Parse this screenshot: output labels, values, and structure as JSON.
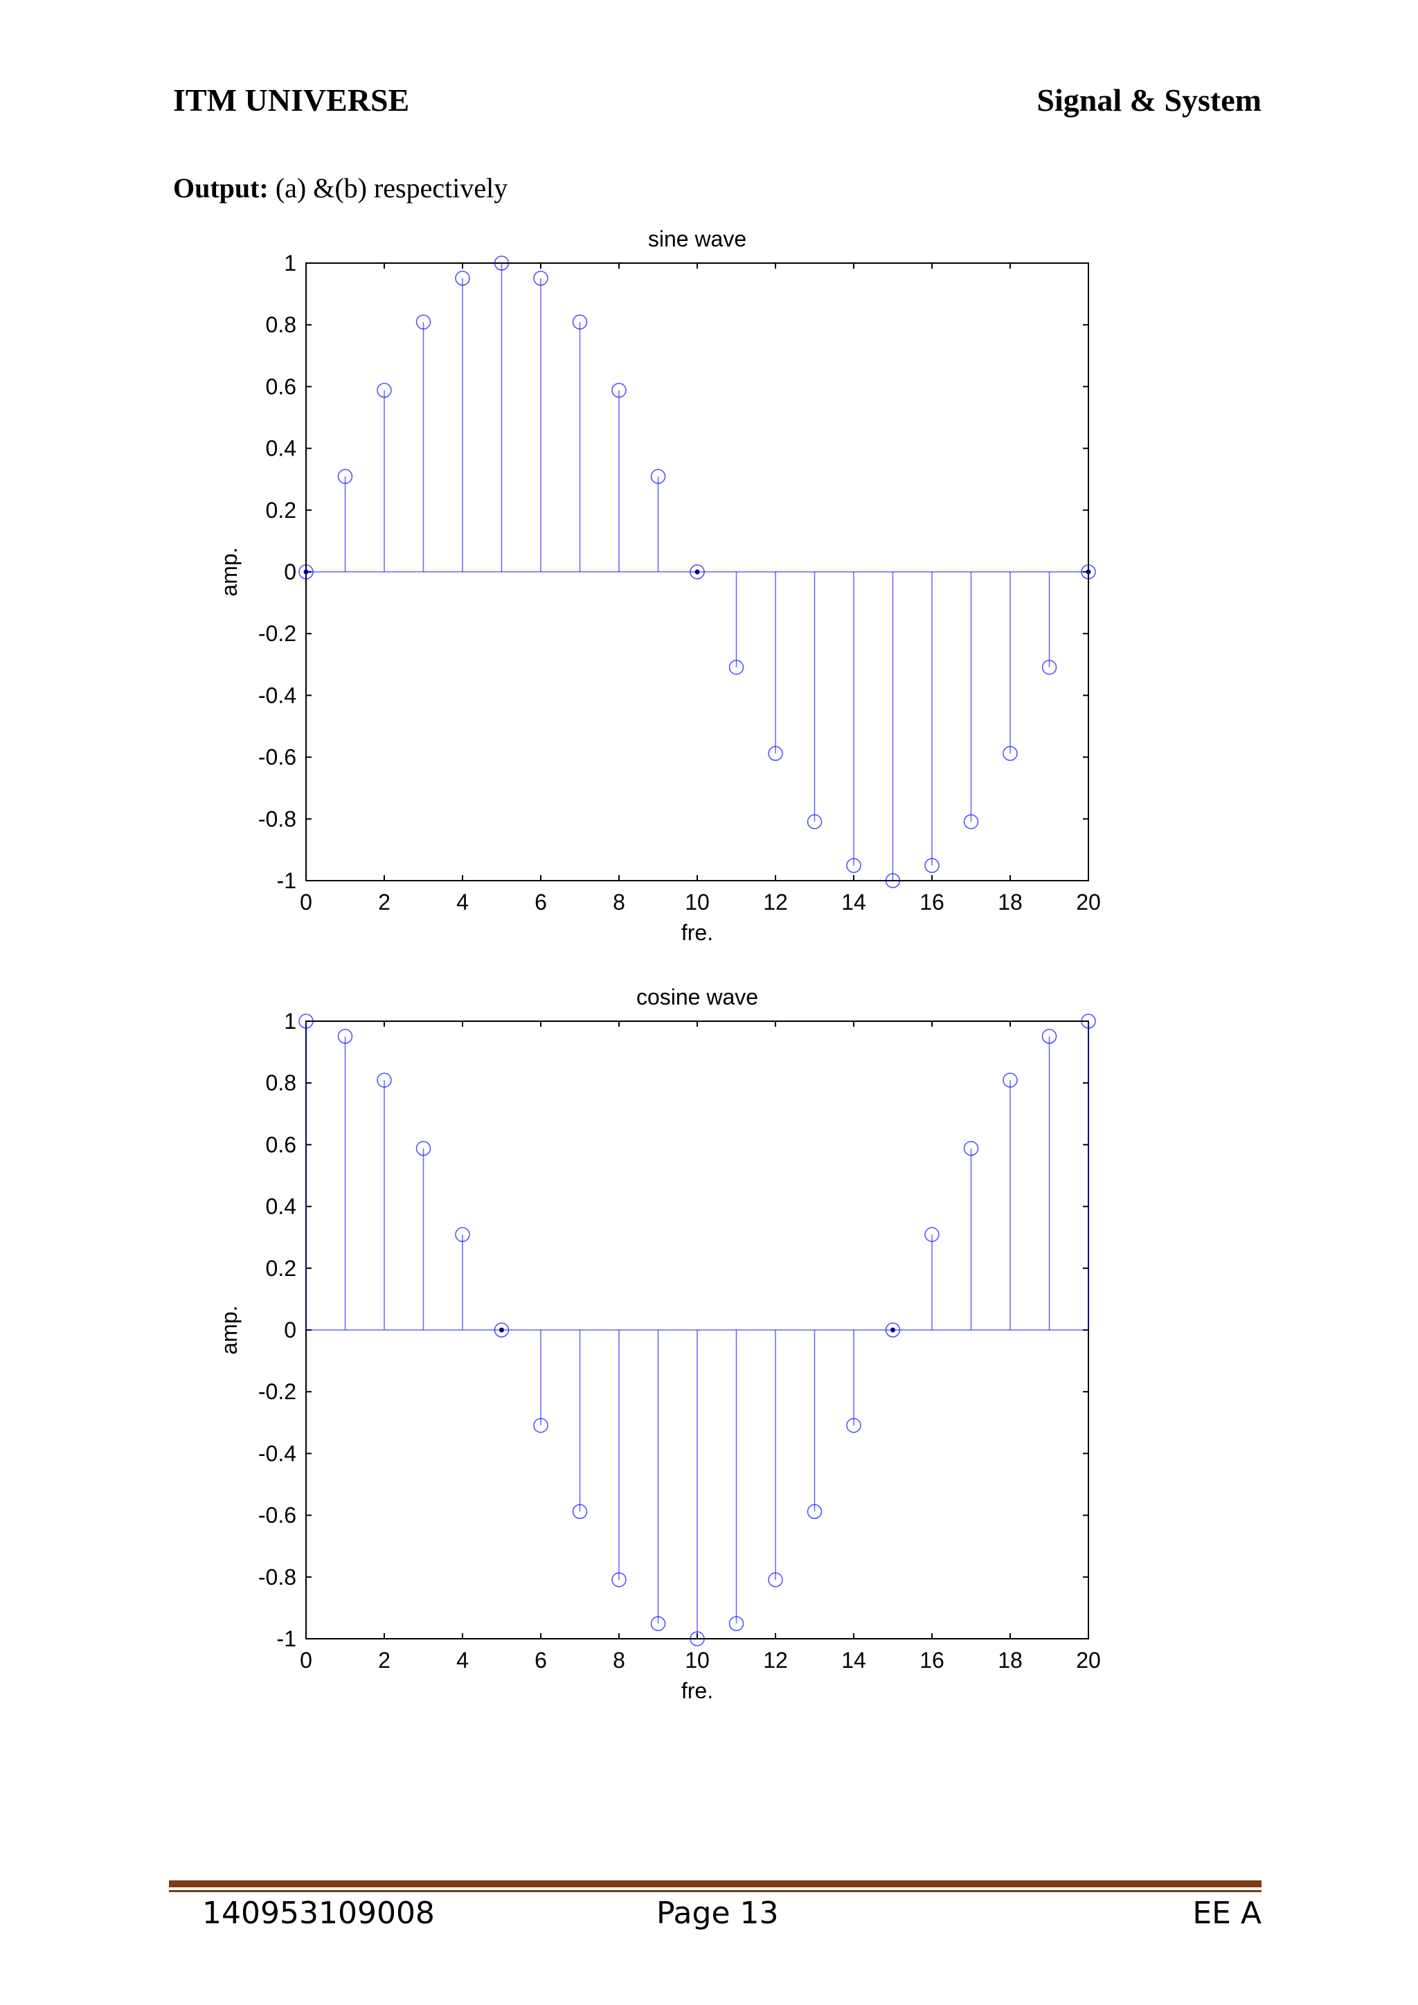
{
  "header": {
    "left": "ITM UNIVERSE",
    "right": "Signal & System"
  },
  "output": {
    "label": "Output:",
    "text": "(a) &(b) respectively"
  },
  "chart_data": [
    {
      "type": "stem",
      "title": "sine wave",
      "xlabel": "fre.",
      "ylabel": "amp.",
      "xlim": [
        0,
        20
      ],
      "ylim": [
        -1,
        1
      ],
      "xticks": [
        "0",
        "2",
        "4",
        "6",
        "8",
        "10",
        "12",
        "14",
        "16",
        "18",
        "20"
      ],
      "yticks": [
        "1",
        "0.8",
        "0.6",
        "0.4",
        "0.2",
        "0",
        "-0.2",
        "-0.4",
        "-0.6",
        "-0.8",
        "-1"
      ],
      "x": [
        0,
        1,
        2,
        3,
        4,
        5,
        6,
        7,
        8,
        9,
        10,
        11,
        12,
        13,
        14,
        15,
        16,
        17,
        18,
        19,
        20
      ],
      "y": [
        0,
        0.309,
        0.588,
        0.809,
        0.951,
        1,
        0.951,
        0.809,
        0.588,
        0.309,
        0,
        -0.309,
        -0.588,
        -0.809,
        -0.951,
        -1,
        -0.951,
        -0.809,
        -0.588,
        -0.309,
        0
      ],
      "color": "#0000ff"
    },
    {
      "type": "stem",
      "title": "cosine wave",
      "xlabel": "fre.",
      "ylabel": "amp.",
      "xlim": [
        0,
        20
      ],
      "ylim": [
        -1,
        1
      ],
      "xticks": [
        "0",
        "2",
        "4",
        "6",
        "8",
        "10",
        "12",
        "14",
        "16",
        "18",
        "20"
      ],
      "yticks": [
        "1",
        "0.8",
        "0.6",
        "0.4",
        "0.2",
        "0",
        "-0.2",
        "-0.4",
        "-0.6",
        "-0.8",
        "-1"
      ],
      "x": [
        0,
        1,
        2,
        3,
        4,
        5,
        6,
        7,
        8,
        9,
        10,
        11,
        12,
        13,
        14,
        15,
        16,
        17,
        18,
        19,
        20
      ],
      "y": [
        1,
        0.951,
        0.809,
        0.588,
        0.309,
        0,
        -0.309,
        -0.588,
        -0.809,
        -0.951,
        -1,
        -0.951,
        -0.809,
        -0.588,
        -0.309,
        0,
        0.309,
        0.588,
        0.809,
        0.951,
        1
      ],
      "color": "#0000ff"
    }
  ],
  "footer": {
    "left": "140953109008",
    "middle": "Page 13",
    "right": "EE A"
  }
}
